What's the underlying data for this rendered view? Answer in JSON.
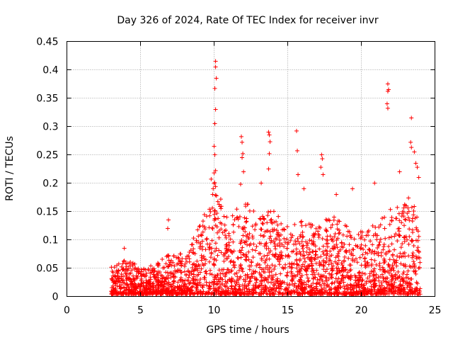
{
  "chart_data": {
    "type": "scatter",
    "title": "Day 326 of 2024, Rate Of TEC Index for receiver invr",
    "xlabel": "GPS time / hours",
    "ylabel": "ROTI / TECUs",
    "xlim": [
      0,
      25
    ],
    "ylim": [
      0,
      0.45
    ],
    "grid": true,
    "marker": "+",
    "color": "#ff0000",
    "x_ticks": [
      0,
      5,
      10,
      15,
      20,
      25
    ],
    "x_tick_labels": [
      "0",
      "5",
      "10",
      "15",
      "20",
      "25"
    ],
    "y_ticks": [
      0,
      0.05,
      0.1,
      0.15,
      0.2,
      0.25,
      0.3,
      0.35,
      0.4,
      0.45
    ],
    "y_tick_labels": [
      "0",
      "0.05",
      "0.1",
      "0.15",
      "0.2",
      "0.25",
      "0.3",
      "0.35",
      "0.4",
      "0.45"
    ],
    "series": [
      {
        "name": "ROTI",
        "x_range": [
          3.0,
          24.0
        ],
        "typical_max_by_hour": [
          [
            3,
            0.05
          ],
          [
            4,
            0.06
          ],
          [
            5,
            0.05
          ],
          [
            6,
            0.05
          ],
          [
            7,
            0.08
          ],
          [
            8,
            0.07
          ],
          [
            9,
            0.12
          ],
          [
            10,
            0.2
          ],
          [
            11,
            0.13
          ],
          [
            12,
            0.17
          ],
          [
            13,
            0.14
          ],
          [
            14,
            0.15
          ],
          [
            15,
            0.12
          ],
          [
            16,
            0.13
          ],
          [
            17,
            0.12
          ],
          [
            18,
            0.14
          ],
          [
            19,
            0.12
          ],
          [
            20,
            0.11
          ],
          [
            21,
            0.13
          ],
          [
            22,
            0.15
          ],
          [
            23,
            0.18
          ],
          [
            24,
            0.14
          ]
        ],
        "peaks": [
          {
            "x": 9.8,
            "y": 0.207
          },
          {
            "x": 9.9,
            "y": 0.18
          },
          {
            "x": 10.1,
            "y": 0.415
          },
          {
            "x": 10.1,
            "y": 0.405
          },
          {
            "x": 10.15,
            "y": 0.385
          },
          {
            "x": 10.05,
            "y": 0.367
          },
          {
            "x": 10.1,
            "y": 0.33
          },
          {
            "x": 10.05,
            "y": 0.305
          },
          {
            "x": 10.0,
            "y": 0.265
          },
          {
            "x": 10.05,
            "y": 0.25
          },
          {
            "x": 10.1,
            "y": 0.222
          },
          {
            "x": 10.0,
            "y": 0.218
          },
          {
            "x": 11.85,
            "y": 0.282
          },
          {
            "x": 11.9,
            "y": 0.272
          },
          {
            "x": 11.95,
            "y": 0.252
          },
          {
            "x": 11.9,
            "y": 0.245
          },
          {
            "x": 12.0,
            "y": 0.22
          },
          {
            "x": 11.8,
            "y": 0.198
          },
          {
            "x": 13.7,
            "y": 0.29
          },
          {
            "x": 13.75,
            "y": 0.285
          },
          {
            "x": 13.8,
            "y": 0.273
          },
          {
            "x": 13.75,
            "y": 0.252
          },
          {
            "x": 13.7,
            "y": 0.225
          },
          {
            "x": 13.2,
            "y": 0.2
          },
          {
            "x": 15.6,
            "y": 0.292
          },
          {
            "x": 15.65,
            "y": 0.257
          },
          {
            "x": 15.7,
            "y": 0.215
          },
          {
            "x": 17.3,
            "y": 0.25
          },
          {
            "x": 17.35,
            "y": 0.243
          },
          {
            "x": 17.25,
            "y": 0.228
          },
          {
            "x": 17.4,
            "y": 0.215
          },
          {
            "x": 16.1,
            "y": 0.19
          },
          {
            "x": 18.3,
            "y": 0.18
          },
          {
            "x": 19.4,
            "y": 0.19
          },
          {
            "x": 21.8,
            "y": 0.375
          },
          {
            "x": 21.85,
            "y": 0.365
          },
          {
            "x": 21.8,
            "y": 0.362
          },
          {
            "x": 21.75,
            "y": 0.34
          },
          {
            "x": 21.8,
            "y": 0.332
          },
          {
            "x": 23.4,
            "y": 0.315
          },
          {
            "x": 23.35,
            "y": 0.272
          },
          {
            "x": 23.4,
            "y": 0.263
          },
          {
            "x": 23.6,
            "y": 0.255
          },
          {
            "x": 23.7,
            "y": 0.235
          },
          {
            "x": 23.8,
            "y": 0.228
          },
          {
            "x": 22.6,
            "y": 0.22
          },
          {
            "x": 20.9,
            "y": 0.2
          },
          {
            "x": 23.9,
            "y": 0.21
          },
          {
            "x": 6.9,
            "y": 0.135
          },
          {
            "x": 6.85,
            "y": 0.12
          },
          {
            "x": 3.9,
            "y": 0.085
          }
        ]
      }
    ]
  }
}
